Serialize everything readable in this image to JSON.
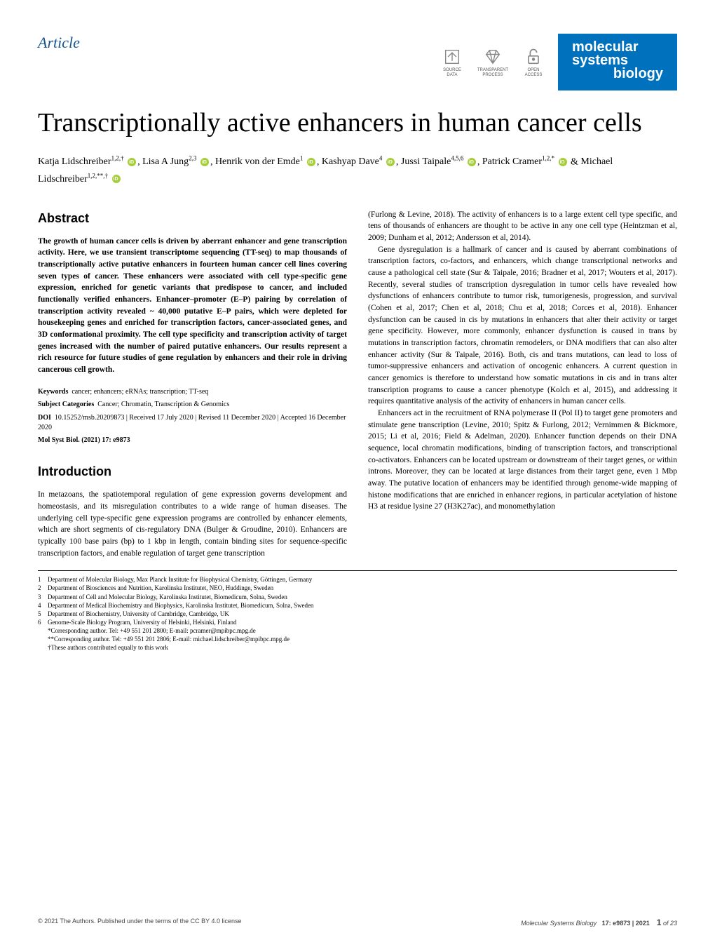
{
  "header": {
    "article_label": "Article",
    "badges": {
      "source_data": "SOURCE\nDATA",
      "transparent_process": "TRANSPARENT\nPROCESS",
      "open_access": "OPEN\nACCESS"
    },
    "journal": {
      "line1": "molecular",
      "line2": "systems",
      "line3": "biology"
    }
  },
  "title": "Transcriptionally active enhancers in human cancer cells",
  "authors": [
    {
      "name": "Katja Lidschreiber",
      "affil": "1,2,†",
      "orcid": true
    },
    {
      "name": "Lisa A Jung",
      "affil": "2,3",
      "orcid": true
    },
    {
      "name": "Henrik von der Emde",
      "affil": "1",
      "orcid": true
    },
    {
      "name": "Kashyap Dave",
      "affil": "4",
      "orcid": true
    },
    {
      "name": "Jussi Taipale",
      "affil": "4,5,6",
      "orcid": true
    },
    {
      "name": "Patrick Cramer",
      "affil": "1,2,*",
      "orcid": true
    },
    {
      "name": "Michael Lidschreiber",
      "affil": "1,2,**,†",
      "orcid": true
    }
  ],
  "author_separator": ", ",
  "author_ampersand": " & ",
  "abstract": {
    "heading": "Abstract",
    "text": "The growth of human cancer cells is driven by aberrant enhancer and gene transcription activity. Here, we use transient transcriptome sequencing (TT-seq) to map thousands of transcriptionally active putative enhancers in fourteen human cancer cell lines covering seven types of cancer. These enhancers were associated with cell type-specific gene expression, enriched for genetic variants that predispose to cancer, and included functionally verified enhancers. Enhancer–promoter (E–P) pairing by correlation of transcription activity revealed ~ 40,000 putative E–P pairs, which were depleted for housekeeping genes and enriched for transcription factors, cancer-associated genes, and 3D conformational proximity. The cell type specificity and transcription activity of target genes increased with the number of paired putative enhancers. Our results represent a rich resource for future studies of gene regulation by enhancers and their role in driving cancerous cell growth."
  },
  "meta": {
    "keywords_label": "Keywords",
    "keywords": "cancer; enhancers; eRNAs; transcription; TT-seq",
    "categories_label": "Subject Categories",
    "categories": "Cancer; Chromatin, Transcription & Genomics",
    "doi_label": "DOI",
    "doi": "10.15252/msb.20209873 | Received 17 July 2020 | Revised 11 December 2020 | Accepted 16 December 2020",
    "citation": "Mol Syst Biol. (2021) 17: e9873"
  },
  "intro": {
    "heading": "Introduction",
    "p1": "In metazoans, the spatiotemporal regulation of gene expression governs development and homeostasis, and its misregulation contributes to a wide range of human diseases. The underlying cell type-specific gene expression programs are controlled by enhancer elements, which are short segments of cis-regulatory DNA (Bulger & Groudine, 2010). Enhancers are typically 100 base pairs (bp) to 1 kbp in length, contain binding sites for sequence-specific transcription factors, and enable regulation of target gene transcription",
    "p2": "(Furlong & Levine, 2018). The activity of enhancers is to a large extent cell type specific, and tens of thousands of enhancers are thought to be active in any one cell type (Heintzman et al, 2009; Dunham et al, 2012; Andersson et al, 2014).",
    "p3": "Gene dysregulation is a hallmark of cancer and is caused by aberrant combinations of transcription factors, co-factors, and enhancers, which change transcriptional networks and cause a pathological cell state (Sur & Taipale, 2016; Bradner et al, 2017; Wouters et al, 2017). Recently, several studies of transcription dysregulation in tumor cells have revealed how dysfunctions of enhancers contribute to tumor risk, tumorigenesis, progression, and survival (Cohen et al, 2017; Chen et al, 2018; Chu et al, 2018; Corces et al, 2018). Enhancer dysfunction can be caused in cis by mutations in enhancers that alter their activity or target gene specificity. However, more commonly, enhancer dysfunction is caused in trans by mutations in transcription factors, chromatin remodelers, or DNA modifiers that can also alter enhancer activity (Sur & Taipale, 2016). Both, cis and trans mutations, can lead to loss of tumor-suppressive enhancers and activation of oncogenic enhancers. A current question in cancer genomics is therefore to understand how somatic mutations in cis and in trans alter transcription programs to cause a cancer phenotype (Kolch et al, 2015), and addressing it requires quantitative analysis of the activity of enhancers in human cancer cells.",
    "p4": "Enhancers act in the recruitment of RNA polymerase II (Pol II) to target gene promoters and stimulate gene transcription (Levine, 2010; Spitz & Furlong, 2012; Vernimmen & Bickmore, 2015; Li et al, 2016; Field & Adelman, 2020). Enhancer function depends on their DNA sequence, local chromatin modifications, binding of transcription factors, and transcriptional co-activators. Enhancers can be located upstream or downstream of their target genes, or within introns. Moreover, they can be located at large distances from their target gene, even 1 Mbp away. The putative location of enhancers may be identified through genome-wide mapping of histone modifications that are enriched in enhancer regions, in particular acetylation of histone H3 at residue lysine 27 (H3K27ac), and monomethylation"
  },
  "affiliations": [
    "Department of Molecular Biology, Max Planck Institute for Biophysical Chemistry, Göttingen, Germany",
    "Department of Biosciences and Nutrition, Karolinska Institutet, NEO, Huddinge, Sweden",
    "Department of Cell and Molecular Biology, Karolinska Institutet, Biomedicum, Solna, Sweden",
    "Department of Medical Biochemistry and Biophysics, Karolinska Institutet, Biomedicum, Solna, Sweden",
    "Department of Biochemistry, University of Cambridge, Cambridge, UK",
    "Genome-Scale Biology Program, University of Helsinki, Helsinki, Finland"
  ],
  "corresponding": [
    "*Corresponding author. Tel: +49 551 201 2800; E-mail: pcramer@mpibpc.mpg.de",
    "**Corresponding author. Tel: +49 551 201 2806; E-mail: michael.lidschreiber@mpibpc.mpg.de"
  ],
  "contrib_note": "†These authors contributed equally to this work",
  "footer": {
    "left": "© 2021 The Authors. Published under the terms of the CC BY 4.0 license",
    "right_journal": "Molecular Systems Biology",
    "right_vol": "17: e9873 | 2021",
    "page_current": "1",
    "page_of": "of 23"
  },
  "colors": {
    "link_blue": "#1a5490",
    "journal_blue": "#0071bc",
    "orcid_green": "#a6ce39",
    "text": "#000000",
    "footer_gray": "#444444"
  }
}
